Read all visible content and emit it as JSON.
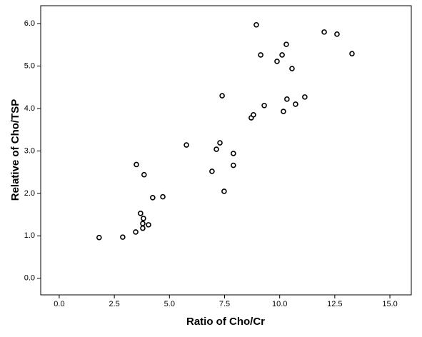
{
  "chart_data": {
    "type": "scatter",
    "x_label": "Ratio of Cho/Cr",
    "y_label": "Relative of Cho/TSP",
    "x": [
      1.81,
      2.88,
      3.5,
      3.85,
      3.47,
      3.69,
      3.82,
      3.79,
      3.79,
      4.05,
      4.24,
      4.7,
      5.77,
      6.93,
      7.13,
      7.29,
      7.39,
      7.48,
      7.9,
      7.9,
      8.71,
      8.81,
      8.94,
      9.14,
      9.3,
      9.88,
      10.11,
      10.17,
      10.3,
      10.33,
      10.56,
      10.72,
      11.14,
      12.02,
      12.6,
      13.28
    ],
    "values": [
      0.96,
      0.97,
      2.68,
      2.44,
      1.09,
      1.53,
      1.41,
      1.29,
      1.18,
      1.26,
      1.9,
      1.92,
      3.14,
      2.52,
      3.04,
      3.19,
      4.3,
      2.05,
      2.94,
      2.66,
      3.78,
      3.85,
      5.97,
      5.26,
      4.07,
      5.11,
      5.26,
      3.93,
      5.51,
      4.22,
      4.94,
      4.1,
      4.27,
      5.8,
      5.75,
      5.29
    ],
    "color": "#000000",
    "xlim": [
      -0.84,
      15.97
    ],
    "ylim": [
      -0.39,
      6.42
    ],
    "xticks": [
      {
        "value": 0,
        "label": "0.0"
      },
      {
        "value": 2.5,
        "label": "2.5"
      },
      {
        "value": 5,
        "label": "5.0"
      },
      {
        "value": 7.5,
        "label": "7.5"
      },
      {
        "value": 10,
        "label": "10.0"
      },
      {
        "value": 12.5,
        "label": "12.5"
      },
      {
        "value": 15,
        "label": "15.0"
      }
    ],
    "yticks": [
      {
        "value": 0,
        "label": "0.0"
      },
      {
        "value": 1,
        "label": "1.0"
      },
      {
        "value": 2,
        "label": "2.0"
      },
      {
        "value": 3,
        "label": "3.0"
      },
      {
        "value": 4,
        "label": "4.0"
      },
      {
        "value": 5,
        "label": "5.0"
      },
      {
        "value": 6,
        "label": "6.0"
      }
    ]
  }
}
